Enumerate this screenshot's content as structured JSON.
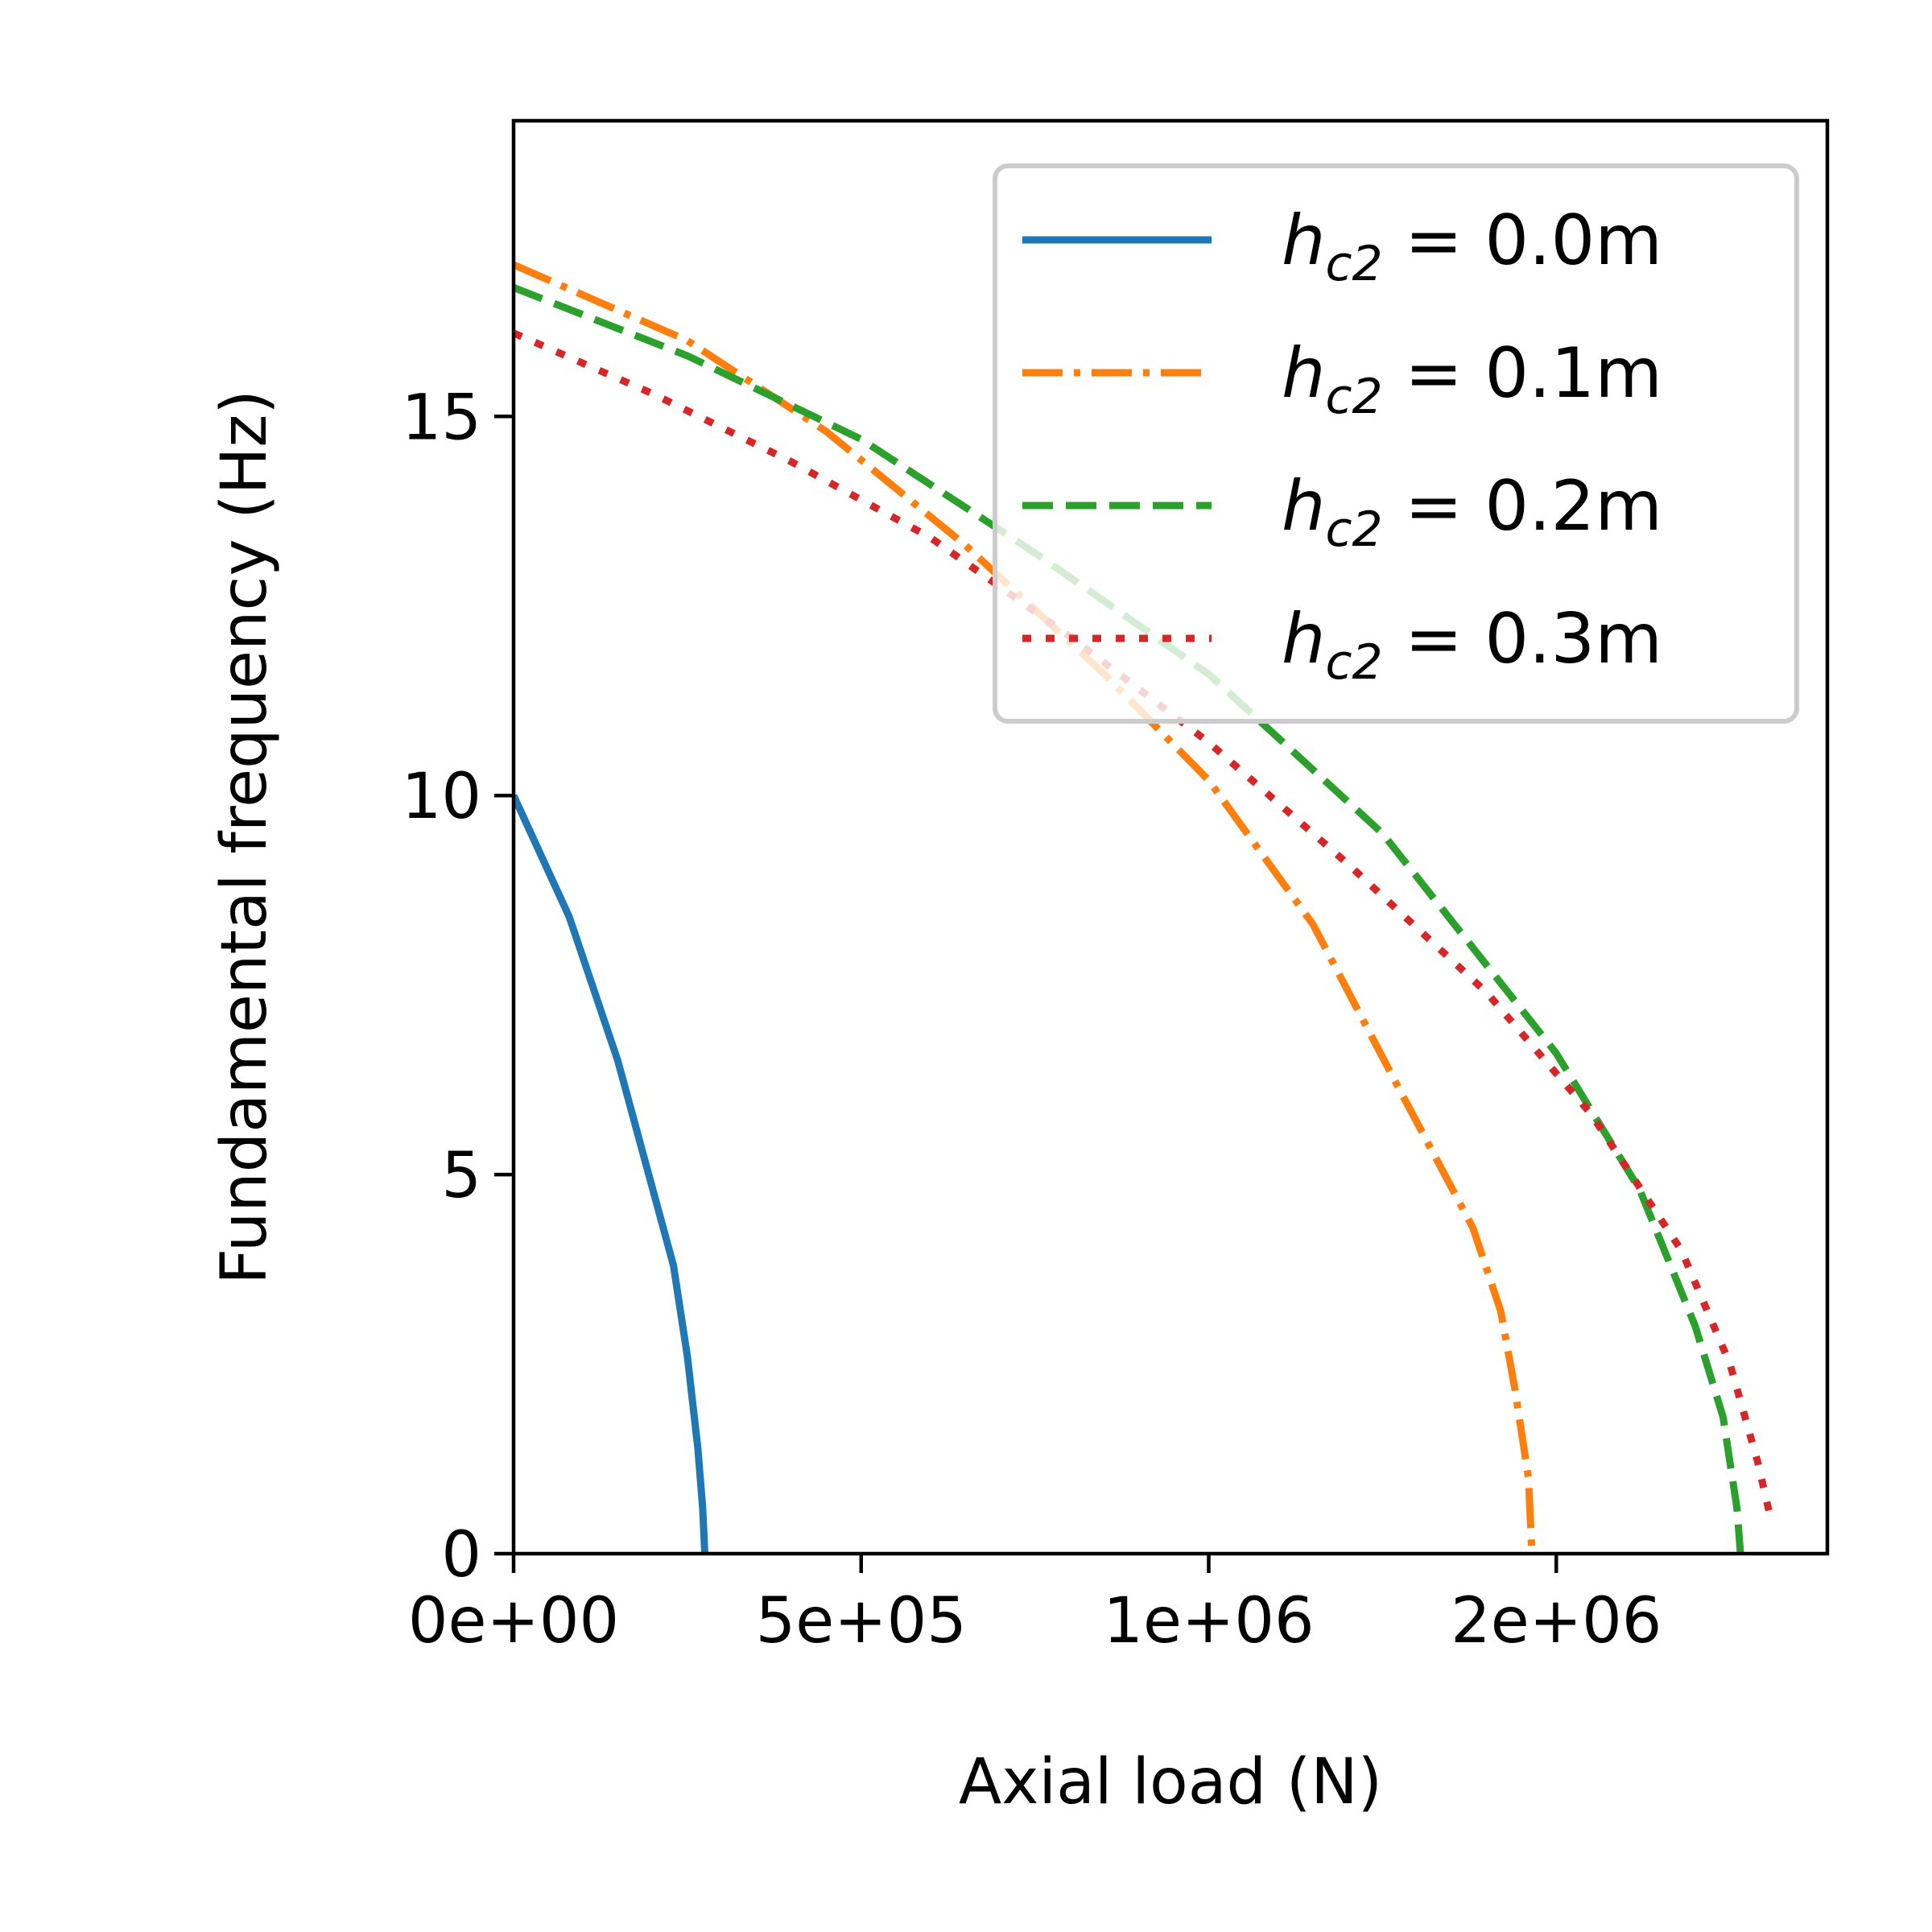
{
  "chart_data": {
    "type": "line",
    "xlabel": "Axial load (N)",
    "ylabel": "Fundamental frequency (Hz)",
    "xlim": [
      0,
      1.89
    ],
    "ylim": [
      0,
      18.9
    ],
    "x_tick_positions": [
      0,
      0.5,
      1.0,
      1.5
    ],
    "x_tick_labels": [
      "0e+00",
      "5e+05",
      "1e+06",
      "2e+06"
    ],
    "y_ticks": [
      0,
      5,
      10,
      15
    ],
    "y_tick_labels": [
      "0",
      "5",
      "10",
      "15"
    ],
    "grid": false,
    "legend_position": "top-right",
    "series": [
      {
        "name": "h_c2 = 0.0m",
        "legend_symbol": "h",
        "legend_subscript": "c2",
        "legend_value": " = 0.0m",
        "color": "#1f77b4",
        "dash": "solid",
        "x": [
          0,
          0.08,
          0.15,
          0.23,
          0.25,
          0.265,
          0.272,
          0.275
        ],
        "y": [
          10.0,
          8.4,
          6.5,
          3.8,
          2.6,
          1.4,
          0.6,
          0.0
        ]
      },
      {
        "name": "h_c2 = 0.1m",
        "legend_symbol": "h",
        "legend_subscript": "c2",
        "legend_value": " = 0.1m",
        "color": "#ff7f0e",
        "dash": "dashdot",
        "x": [
          0,
          0.25,
          0.45,
          0.65,
          0.85,
          1.0,
          1.15,
          1.27,
          1.38,
          1.42,
          1.44,
          1.46,
          1.465
        ],
        "y": [
          17.0,
          16.0,
          14.8,
          13.3,
          11.6,
          10.2,
          8.3,
          6.2,
          4.3,
          3.2,
          2.2,
          1.0,
          0.0
        ]
      },
      {
        "name": "h_c2 = 0.2m",
        "legend_symbol": "h",
        "legend_subscript": "c2",
        "legend_value": " = 0.2m",
        "color": "#2ca02c",
        "dash": "dashed",
        "x": [
          0,
          0.25,
          0.5,
          0.75,
          1.0,
          1.25,
          1.5,
          1.62,
          1.7,
          1.74,
          1.76,
          1.765
        ],
        "y": [
          16.7,
          15.8,
          14.7,
          13.2,
          11.6,
          9.5,
          6.6,
          4.8,
          3.0,
          1.8,
          0.6,
          0.0
        ]
      },
      {
        "name": "h_c2 = 0.3m",
        "legend_symbol": "h",
        "legend_subscript": "c2",
        "legend_value": " = 0.3m",
        "color": "#d62728",
        "dash": "dotted",
        "x": [
          0,
          0.2,
          0.4,
          0.6,
          0.8,
          1.0,
          1.2,
          1.4,
          1.55,
          1.68,
          1.75,
          1.79,
          1.81
        ],
        "y": [
          16.1,
          15.3,
          14.4,
          13.4,
          12.1,
          10.7,
          9.1,
          7.4,
          5.8,
          4.0,
          2.5,
          1.2,
          0.4
        ]
      }
    ]
  }
}
